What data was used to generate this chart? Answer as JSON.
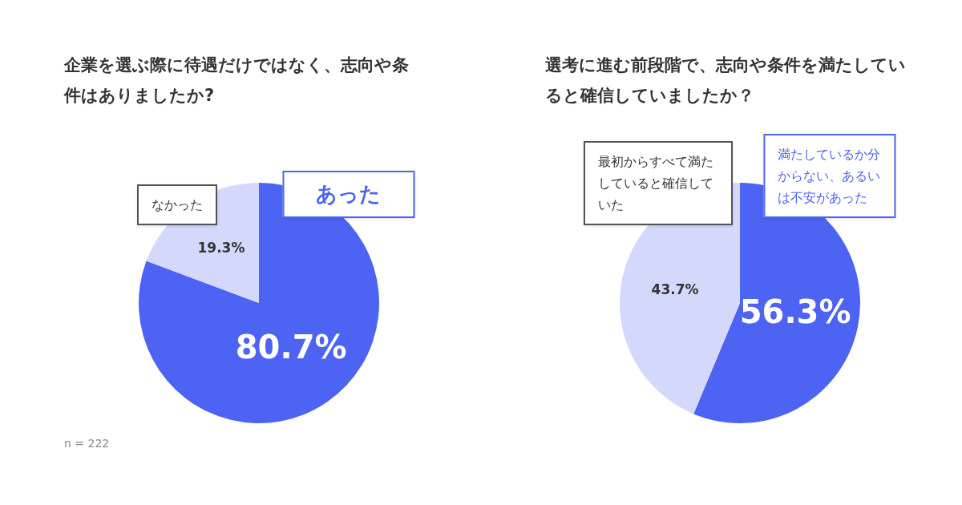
{
  "chart_data": [
    {
      "type": "pie",
      "title": "企業を選ぶ際に待遇だけではなく、志向や条件はありましたか?",
      "categories": [
        "あった",
        "なかった"
      ],
      "values": [
        80.7,
        19.3
      ],
      "colors": [
        "#4d63f3",
        "#d4d8fb"
      ],
      "value_labels": [
        "80.7%",
        "19.3%"
      ],
      "annotations": [
        "n = 222"
      ]
    },
    {
      "type": "pie",
      "title": "選考に進む前段階で、志向や条件を満たしていると確信していましたか？",
      "categories": [
        "満たしているか分からない、あるいは不安があった",
        "最初からすべて満たしていると確信していた"
      ],
      "values": [
        56.3,
        43.7
      ],
      "colors": [
        "#4d63f3",
        "#d4d8fb"
      ],
      "value_labels": [
        "56.3%",
        "43.7%"
      ]
    }
  ]
}
